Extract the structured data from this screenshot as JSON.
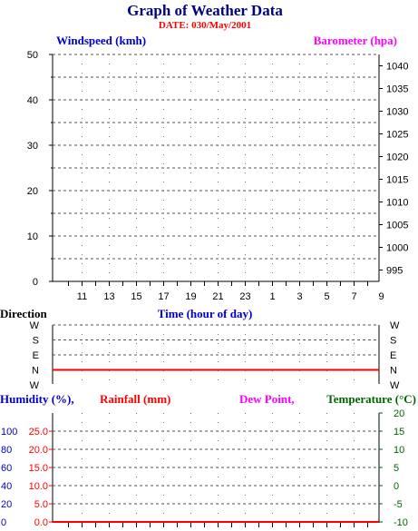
{
  "title": "Graph of Weather Data",
  "date_label": "DATE: 030/May/2001",
  "colors": {
    "navy": "#000080",
    "blue": "#0000cc",
    "red": "#ff0000",
    "magenta": "#ff00ff",
    "green": "#006400",
    "black": "#000000"
  },
  "chart_data": [
    {
      "type": "line",
      "id": "wind-baro",
      "ylabel_left": "Windspeed (kmh)",
      "ylabel_right": "Barometer (hpa)",
      "xlabel": "Time (hour of day)",
      "x_ticks": [
        "11",
        "13",
        "15",
        "17",
        "19",
        "21",
        "23",
        "1",
        "3",
        "5",
        "7",
        "9"
      ],
      "y_left_ticks": [
        "50",
        "40",
        "30",
        "20",
        "10",
        "0"
      ],
      "y_left_range": [
        0,
        50
      ],
      "y_right_ticks": [
        "1040",
        "1035",
        "1030",
        "1025",
        "1020",
        "1015",
        "1010",
        "1005",
        "1000",
        "995"
      ],
      "y_right_range": [
        992.5,
        1042.5
      ],
      "grid": true,
      "series": []
    },
    {
      "type": "line",
      "id": "direction",
      "ylabel_left": "Direction",
      "y_ticks": [
        "W",
        "S",
        "E",
        "N",
        "W"
      ],
      "grid": true,
      "series": [
        {
          "color": "#ff0000",
          "y_level": "N",
          "values": [
            "N",
            "N",
            "N",
            "N",
            "N",
            "N",
            "N",
            "N",
            "N",
            "N",
            "N",
            "N"
          ]
        }
      ]
    },
    {
      "type": "line",
      "id": "hum-rain-temp",
      "ylabel_humidity": "Humidity (%),",
      "ylabel_rainfall": "Rainfall (mm)",
      "ylabel_dewpoint": "Dew Point,",
      "ylabel_temperature": "Temperature (°C)",
      "humidity_ticks": [
        "100",
        "80",
        "60",
        "40",
        "20",
        "0"
      ],
      "rainfall_ticks": [
        "25.0",
        "20.0",
        "15.0",
        "10.0",
        "5.0",
        "0.0"
      ],
      "rainfall_range": [
        0,
        25
      ],
      "temperature_ticks": [
        "20",
        "15",
        "10",
        "5",
        "0",
        "-5",
        "-10"
      ],
      "temperature_range": [
        -10,
        20
      ],
      "grid": true,
      "series": [
        {
          "color": "#ff0000",
          "values": [
            0,
            0,
            0,
            0,
            0,
            0,
            0,
            0,
            0,
            0,
            0,
            0
          ]
        }
      ]
    }
  ]
}
